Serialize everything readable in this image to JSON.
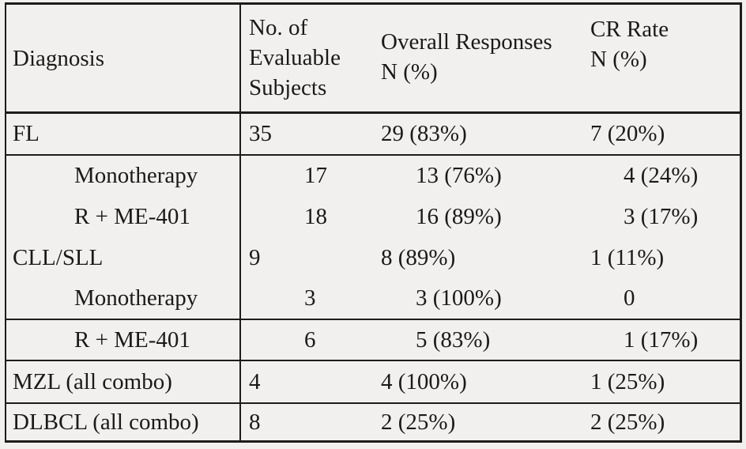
{
  "chart_data": {
    "type": "table",
    "title": "",
    "columns": [
      "Diagnosis",
      "No. of\nEvaluable\nSubjects",
      "Overall Responses\nN (%)",
      "CR Rate\nN (%)"
    ],
    "rows": [
      {
        "diagnosis": "FL",
        "subgroup": false,
        "evaluable_subjects": "35",
        "overall_responses": "29 (83%)",
        "cr_rate": "7 (20%)"
      },
      {
        "diagnosis": "Monotherapy",
        "subgroup": true,
        "evaluable_subjects": "17",
        "overall_responses": "13 (76%)",
        "cr_rate": "4 (24%)"
      },
      {
        "diagnosis": "R + ME-401",
        "subgroup": true,
        "evaluable_subjects": "18",
        "overall_responses": "16 (89%)",
        "cr_rate": "3 (17%)"
      },
      {
        "diagnosis": "CLL/SLL",
        "subgroup": false,
        "evaluable_subjects": "9",
        "overall_responses": "8 (89%)",
        "cr_rate": "1 (11%)"
      },
      {
        "diagnosis": "Monotherapy",
        "subgroup": true,
        "evaluable_subjects": "3",
        "overall_responses": "3 (100%)",
        "cr_rate": "0"
      },
      {
        "diagnosis": "R + ME-401",
        "subgroup": true,
        "evaluable_subjects": "6",
        "overall_responses": "5 (83%)",
        "cr_rate": "1 (17%)"
      },
      {
        "diagnosis": "MZL (all combo)",
        "subgroup": false,
        "evaluable_subjects": "4",
        "overall_responses": "4 (100%)",
        "cr_rate": "1 (25%)"
      },
      {
        "diagnosis": "DLBCL (all combo)",
        "subgroup": false,
        "evaluable_subjects": "8",
        "overall_responses": "2 (25%)",
        "cr_rate": "2 (25%)"
      }
    ],
    "layout": {
      "grid": "partial horizontal rules; vertical rule only after Diagnosis column",
      "header_position": "top"
    }
  },
  "colors": {
    "background": "#f2f0ee",
    "border": "#1c1c1c",
    "text": "#1a1a1a"
  }
}
